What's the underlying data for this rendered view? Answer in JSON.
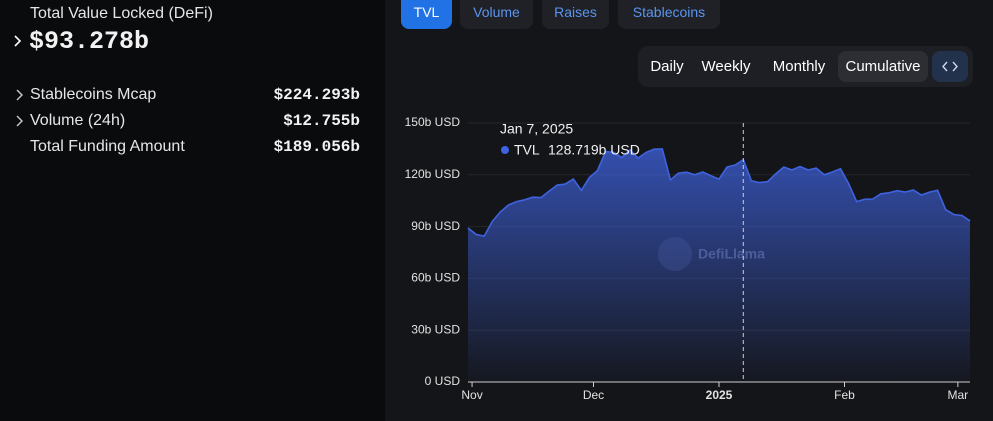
{
  "overview": {
    "title": "Total Value Locked (DeFi)",
    "value": "$93.278b",
    "metrics": [
      {
        "label": "Stablecoins Mcap",
        "value": "$224.293b"
      },
      {
        "label": "Volume (24h)",
        "value": "$12.755b"
      },
      {
        "label": "Total Funding Amount",
        "value": "$189.056b"
      }
    ]
  },
  "tabs": [
    {
      "label": "TVL",
      "active": true
    },
    {
      "label": "Volume",
      "active": false
    },
    {
      "label": "Raises",
      "active": false
    },
    {
      "label": "Stablecoins",
      "active": false
    }
  ],
  "periods": [
    {
      "label": "Daily",
      "active": false
    },
    {
      "label": "Weekly",
      "active": false
    },
    {
      "label": "Monthly",
      "active": false
    },
    {
      "label": "Cumulative",
      "active": true
    }
  ],
  "chart_data": {
    "type": "area",
    "watermark": "DefiLlama",
    "x": [
      "2024-10-31",
      "2024-11-02",
      "2024-11-04",
      "2024-11-06",
      "2024-11-08",
      "2024-11-10",
      "2024-11-12",
      "2024-11-14",
      "2024-11-16",
      "2024-11-18",
      "2024-11-20",
      "2024-11-22",
      "2024-11-24",
      "2024-11-26",
      "2024-11-28",
      "2024-11-30",
      "2024-12-02",
      "2024-12-04",
      "2024-12-06",
      "2024-12-08",
      "2024-12-10",
      "2024-12-12",
      "2024-12-14",
      "2024-12-16",
      "2024-12-18",
      "2024-12-20",
      "2024-12-22",
      "2024-12-24",
      "2024-12-26",
      "2024-12-28",
      "2024-12-30",
      "2025-01-01",
      "2025-01-03",
      "2025-01-05",
      "2025-01-07",
      "2025-01-09",
      "2025-01-11",
      "2025-01-13",
      "2025-01-15",
      "2025-01-17",
      "2025-01-19",
      "2025-01-21",
      "2025-01-23",
      "2025-01-25",
      "2025-01-27",
      "2025-01-29",
      "2025-01-31",
      "2025-02-02",
      "2025-02-04",
      "2025-02-06",
      "2025-02-08",
      "2025-02-10",
      "2025-02-12",
      "2025-02-14",
      "2025-02-16",
      "2025-02-18",
      "2025-02-20",
      "2025-02-22",
      "2025-02-24",
      "2025-02-26",
      "2025-02-28",
      "2025-03-02",
      "2025-03-04"
    ],
    "series": [
      {
        "name": "TVL",
        "color": "#3f63e0",
        "values": [
          89.2,
          85.5,
          84.5,
          93.0,
          98.5,
          102.5,
          104.5,
          105.5,
          107.0,
          106.8,
          110.5,
          114.0,
          114.6,
          117.5,
          111.0,
          118.5,
          122.5,
          133.5,
          133.0,
          130.0,
          134.4,
          129.7,
          133.0,
          134.8,
          135.0,
          117.0,
          121.0,
          121.5,
          120.0,
          121.6,
          119.5,
          117.5,
          124.5,
          125.7,
          128.719,
          116.5,
          115.5,
          116.0,
          120.5,
          124.5,
          122.8,
          124.8,
          122.8,
          123.9,
          120.0,
          121.6,
          123.5,
          115.0,
          104.5,
          105.8,
          106.0,
          109.0,
          109.6,
          110.8,
          110.0,
          111.2,
          108.3,
          110.0,
          111.0,
          99.8,
          97.0,
          96.4,
          93.278
        ]
      }
    ],
    "xlim": [
      "2024-10-31",
      "2025-03-04"
    ],
    "xticks": [
      {
        "value": "2024-11-01",
        "label": "Nov"
      },
      {
        "value": "2024-12-01",
        "label": "Dec"
      },
      {
        "value": "2025-01-01",
        "label": "2025"
      },
      {
        "value": "2025-02-01",
        "label": "Feb"
      },
      {
        "value": "2025-03-01",
        "label": "Mar"
      }
    ],
    "ylim": [
      0,
      150
    ],
    "yticks": [
      {
        "value": 0,
        "label": "0 USD"
      },
      {
        "value": 30,
        "label": "30b USD"
      },
      {
        "value": 60,
        "label": "60b USD"
      },
      {
        "value": 90,
        "label": "90b USD"
      },
      {
        "value": 120,
        "label": "120b USD"
      },
      {
        "value": 150,
        "label": "150b USD"
      }
    ],
    "grid": true,
    "tooltip": {
      "x": "2025-01-07",
      "label": "Jan 7, 2025",
      "value_label": "128.719b USD"
    }
  }
}
